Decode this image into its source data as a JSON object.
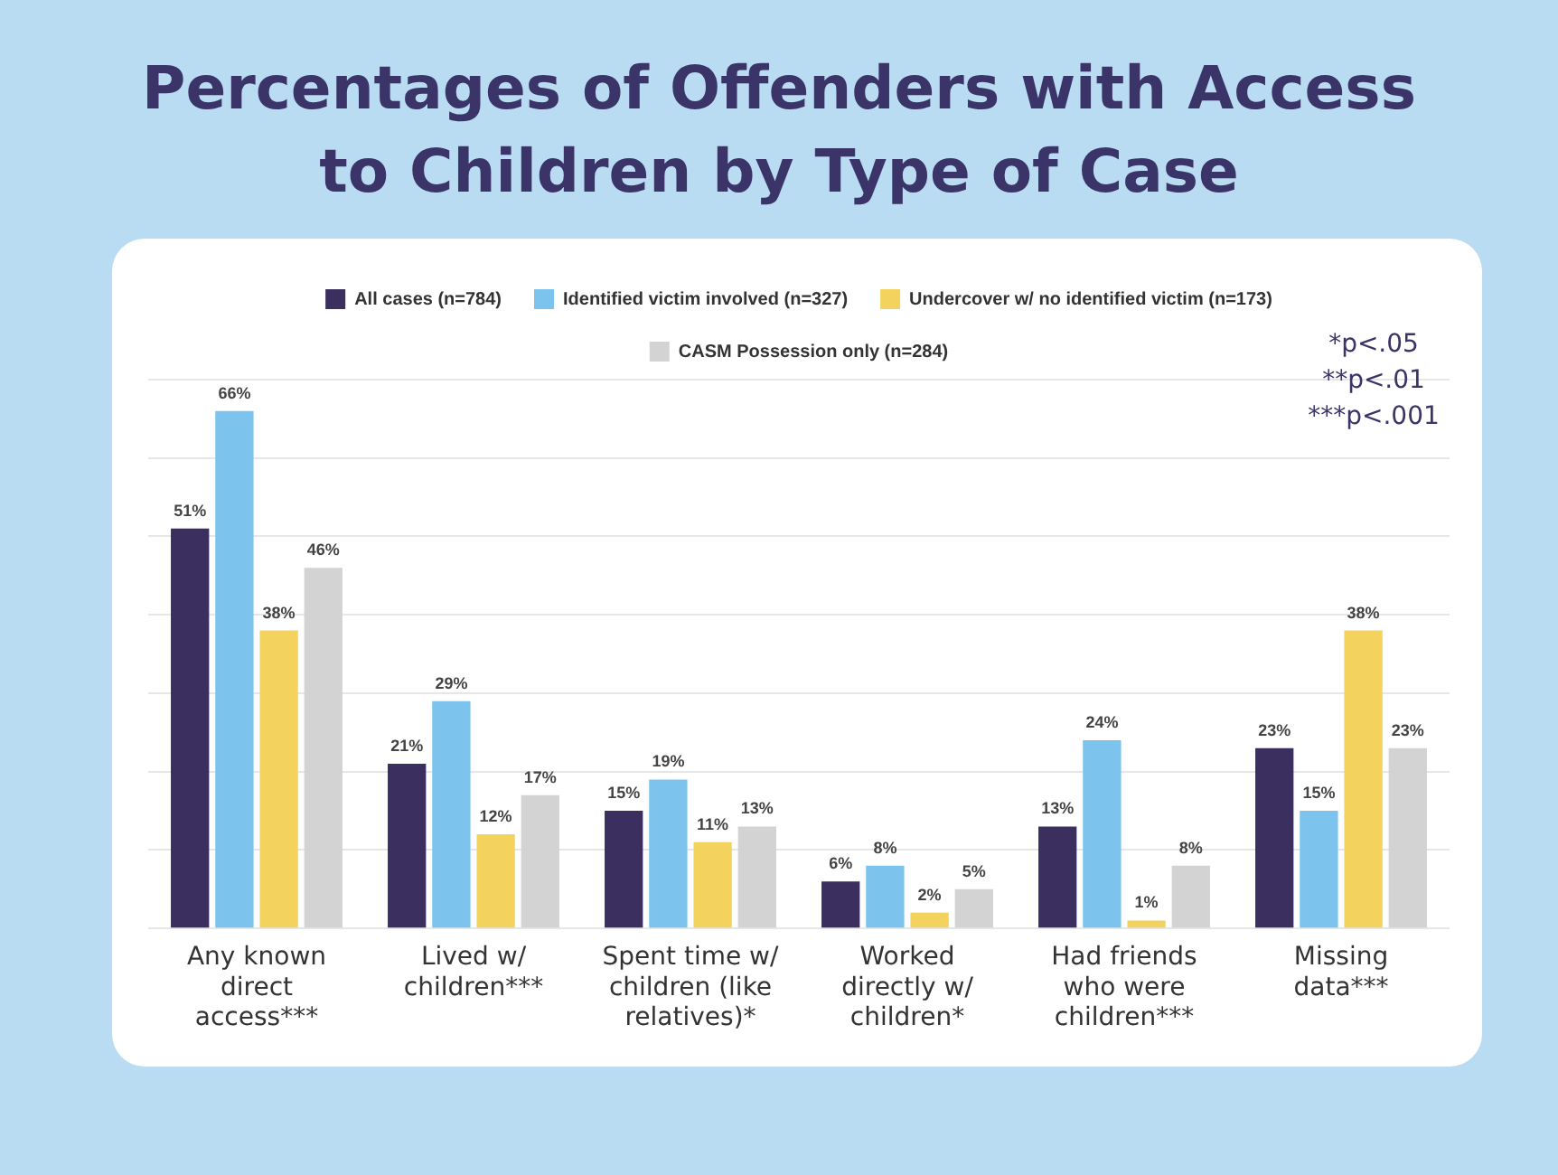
{
  "chart_data": {
    "type": "bar",
    "title": "Percentages of Offenders with Access to Children by Type of Case",
    "categories": [
      "Any known direct access***",
      "Lived w/ children***",
      "Spent time w/ children (like relatives)*",
      "Worked directly w/ children*",
      "Had friends who were children***",
      "Missing data***"
    ],
    "series": [
      {
        "name": "All cases (n=784)",
        "color": "#3a2f5e",
        "values": [
          51,
          21,
          15,
          6,
          13,
          23
        ],
        "value_labels": [
          "51%",
          "21%",
          "15%",
          "6%",
          "13%",
          "23%"
        ]
      },
      {
        "name": "Identified victim involved (n=327)",
        "color": "#7cc4ee",
        "values": [
          66,
          29,
          19,
          8,
          24,
          15
        ],
        "value_labels": [
          "66%",
          "29%",
          "19%",
          "8%",
          "24%",
          "15%"
        ]
      },
      {
        "name": "Undercover w/ no identified victim (n=173)",
        "color": "#f3d35e",
        "values": [
          38,
          12,
          11,
          2,
          1,
          38
        ],
        "value_labels": [
          "38%",
          "12%",
          "11%",
          "2%",
          "1%",
          "38%"
        ]
      },
      {
        "name": "CASM Possession only (n=284)",
        "color": "#d3d3d3",
        "values": [
          46,
          17,
          13,
          5,
          8,
          23
        ],
        "value_labels": [
          "46%",
          "17%",
          "13%",
          "5%",
          "8%",
          "23%"
        ]
      }
    ],
    "ylim": [
      0,
      70
    ],
    "yticks": [
      0,
      10,
      20,
      30,
      40,
      50,
      60,
      70
    ],
    "tick_labels": "x",
    "grid": "y",
    "legend": "top",
    "annotations": [
      "*p<.05",
      "**p<.01",
      "***p<.001"
    ]
  }
}
